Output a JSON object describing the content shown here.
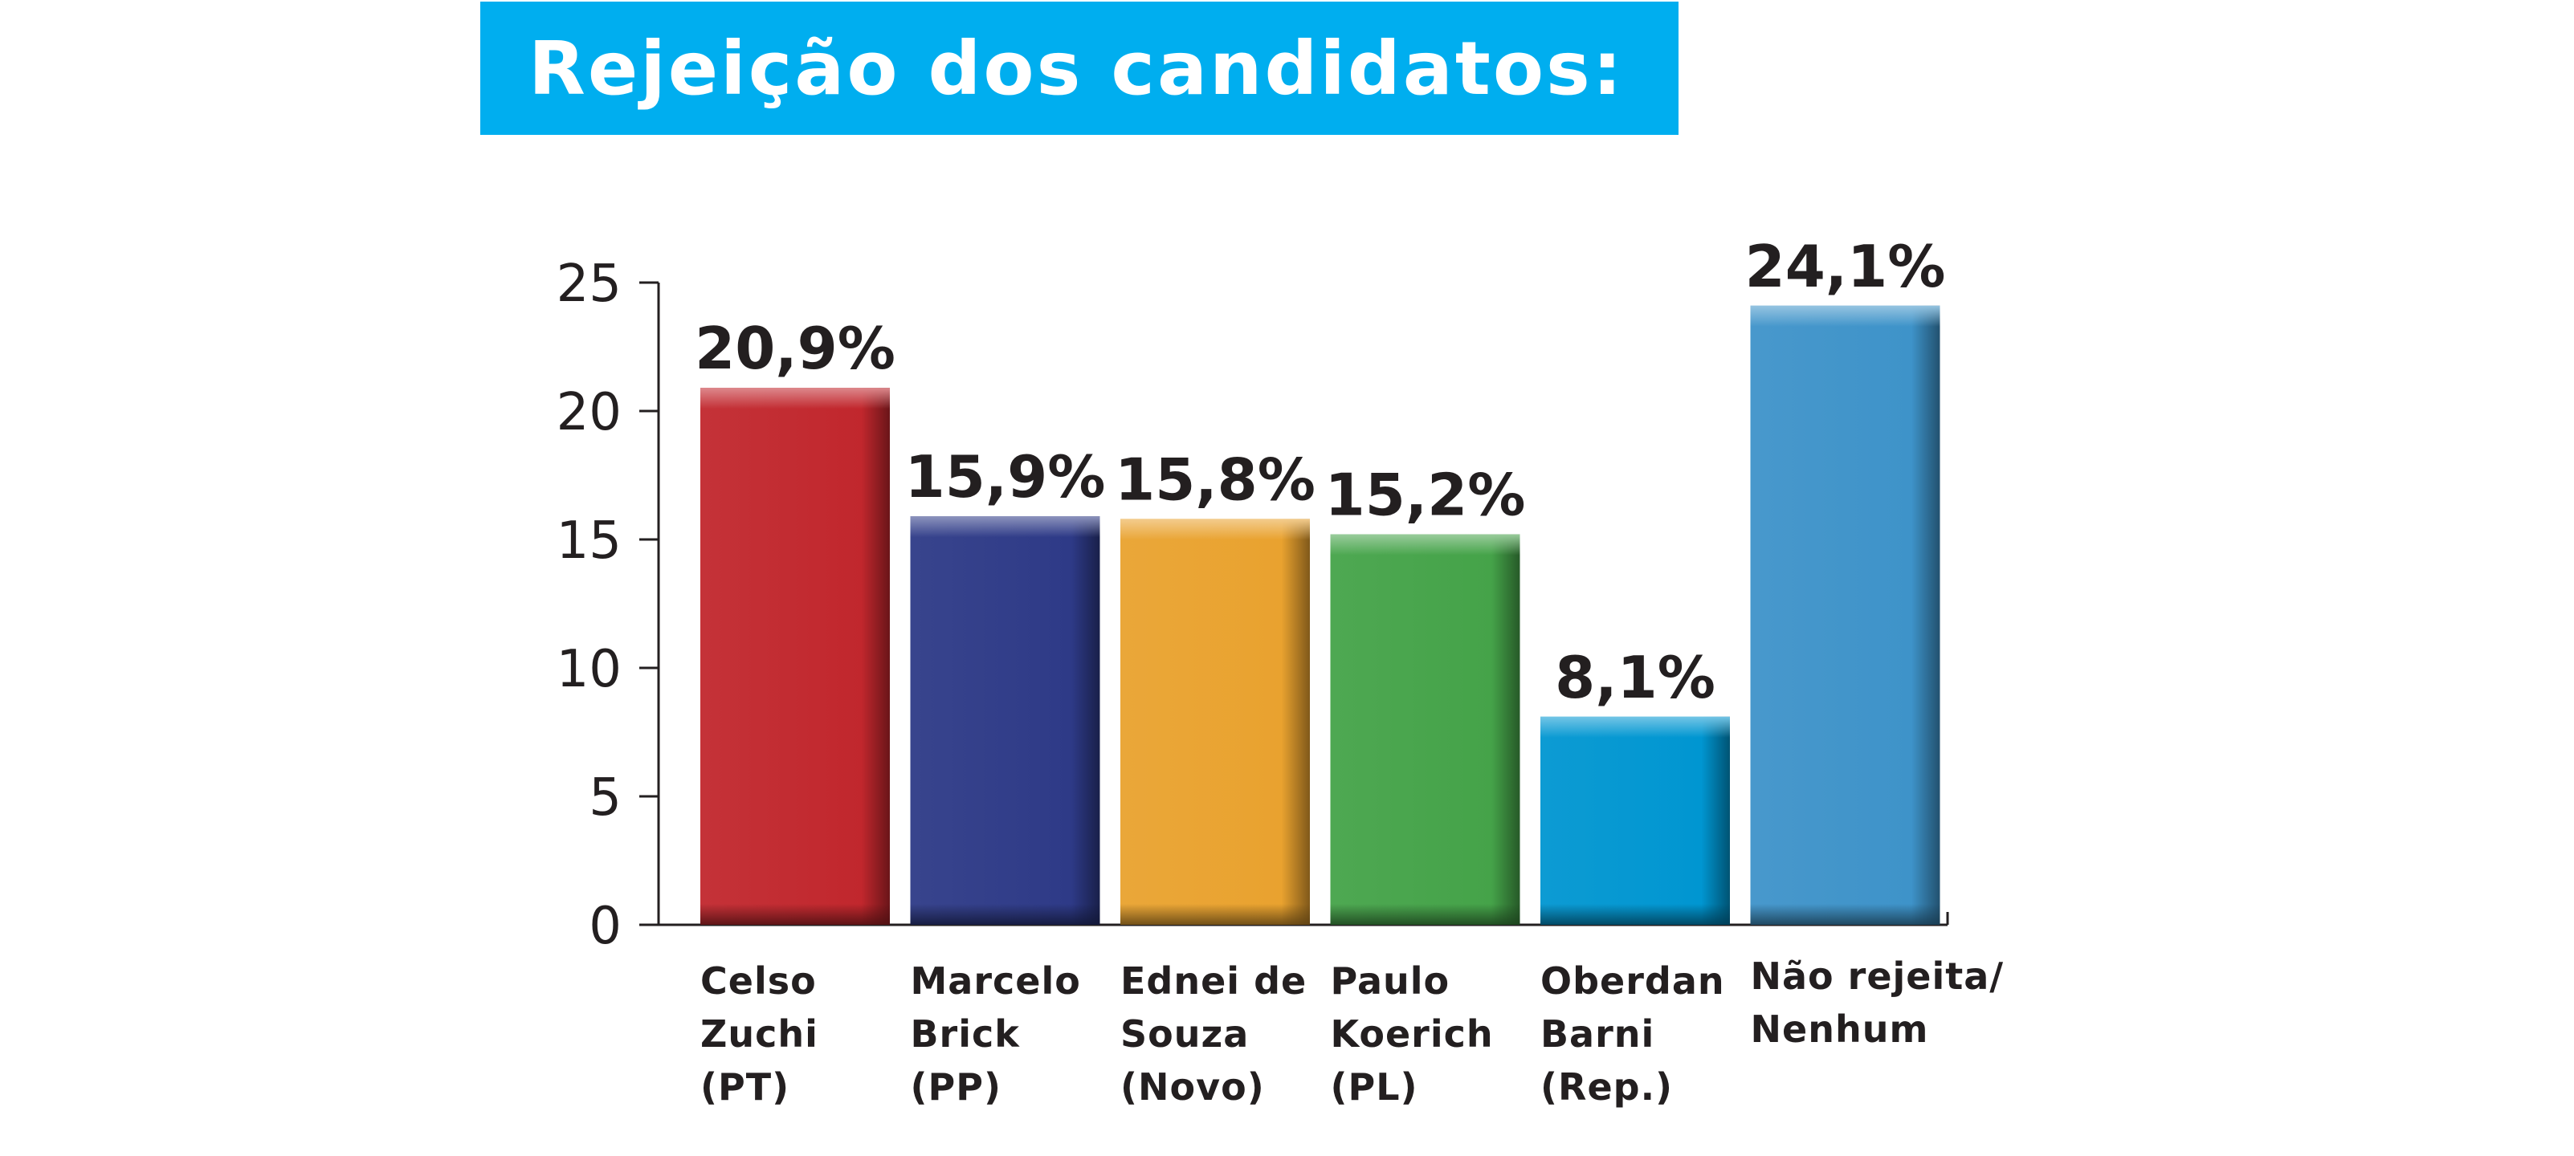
{
  "title": "Rejeição dos candidatos:",
  "colors": {
    "banner": "#00aeef",
    "title_text": "#ffffff",
    "text": "#231f20"
  },
  "chart_data": {
    "type": "bar",
    "title": "Rejeição dos candidatos:",
    "xlabel": "",
    "ylabel": "",
    "ylim": [
      0,
      25
    ],
    "yticks": [
      "0",
      "5",
      "10",
      "15",
      "20",
      "25"
    ],
    "grid": false,
    "categories": [
      [
        "Celso",
        "Zuchi",
        "(PT)"
      ],
      [
        "Marcelo",
        "Brick",
        "(PP)"
      ],
      [
        "Ednei de",
        "Souza",
        "(Novo)"
      ],
      [
        "Paulo",
        "Koerich",
        "(PL)"
      ],
      [
        "Oberdan",
        "Barni",
        "(Rep.)"
      ],
      [
        "Não rejeita/",
        "Nenhum"
      ]
    ],
    "values": [
      20.9,
      15.9,
      15.8,
      15.2,
      8.1,
      24.1
    ],
    "data_labels": [
      "20,9%",
      "15,9%",
      "15,8%",
      "15,2%",
      "8,1%",
      "24,1%"
    ],
    "bar_colors": [
      "#c1272d",
      "#2e3a87",
      "#e9a22f",
      "#45a349",
      "#0096d1",
      "#3e93c9"
    ]
  }
}
